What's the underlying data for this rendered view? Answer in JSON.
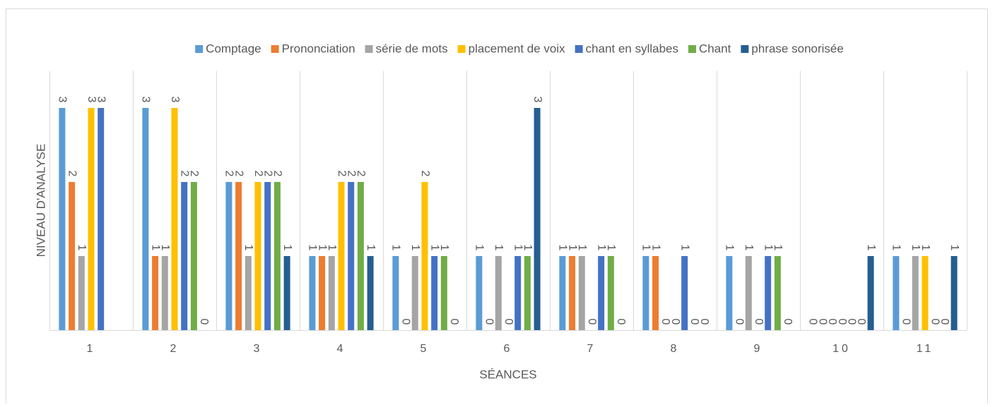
{
  "chart_data": {
    "type": "bar",
    "x_label": "SÉANCES",
    "y_label": "NIVEAU D'ANALYSE",
    "categories": [
      "1",
      "2",
      "3",
      "4",
      "5",
      "6",
      "7",
      "8",
      "9",
      "10",
      "11"
    ],
    "ylim": [
      0,
      3.5
    ],
    "legend": "top",
    "series": [
      {
        "name": "Comptage",
        "color": "#5b9bd5",
        "values": [
          3,
          3,
          2,
          1,
          1,
          1,
          1,
          1,
          1,
          0,
          1
        ]
      },
      {
        "name": "Prononciation",
        "color": "#ed7d31",
        "values": [
          2,
          1,
          2,
          1,
          0,
          0,
          1,
          1,
          0,
          0,
          0
        ]
      },
      {
        "name": "série de mots",
        "color": "#a5a5a5",
        "values": [
          1,
          1,
          1,
          1,
          1,
          1,
          1,
          0,
          1,
          0,
          1
        ]
      },
      {
        "name": "placement de voix",
        "color": "#ffc000",
        "values": [
          3,
          3,
          2,
          2,
          2,
          0,
          0,
          0,
          0,
          0,
          1
        ]
      },
      {
        "name": "chant en syllabes",
        "color": "#4472c4",
        "values": [
          3,
          2,
          2,
          2,
          1,
          1,
          1,
          1,
          1,
          0,
          0
        ]
      },
      {
        "name": "Chant",
        "color": "#70ad47",
        "values": [
          null,
          2,
          2,
          2,
          1,
          1,
          1,
          0,
          1,
          0,
          0
        ]
      },
      {
        "name": "phrase sonorisée",
        "color": "#255e91",
        "values": [
          null,
          0,
          1,
          1,
          0,
          3,
          0,
          0,
          0,
          1,
          1
        ]
      }
    ]
  }
}
